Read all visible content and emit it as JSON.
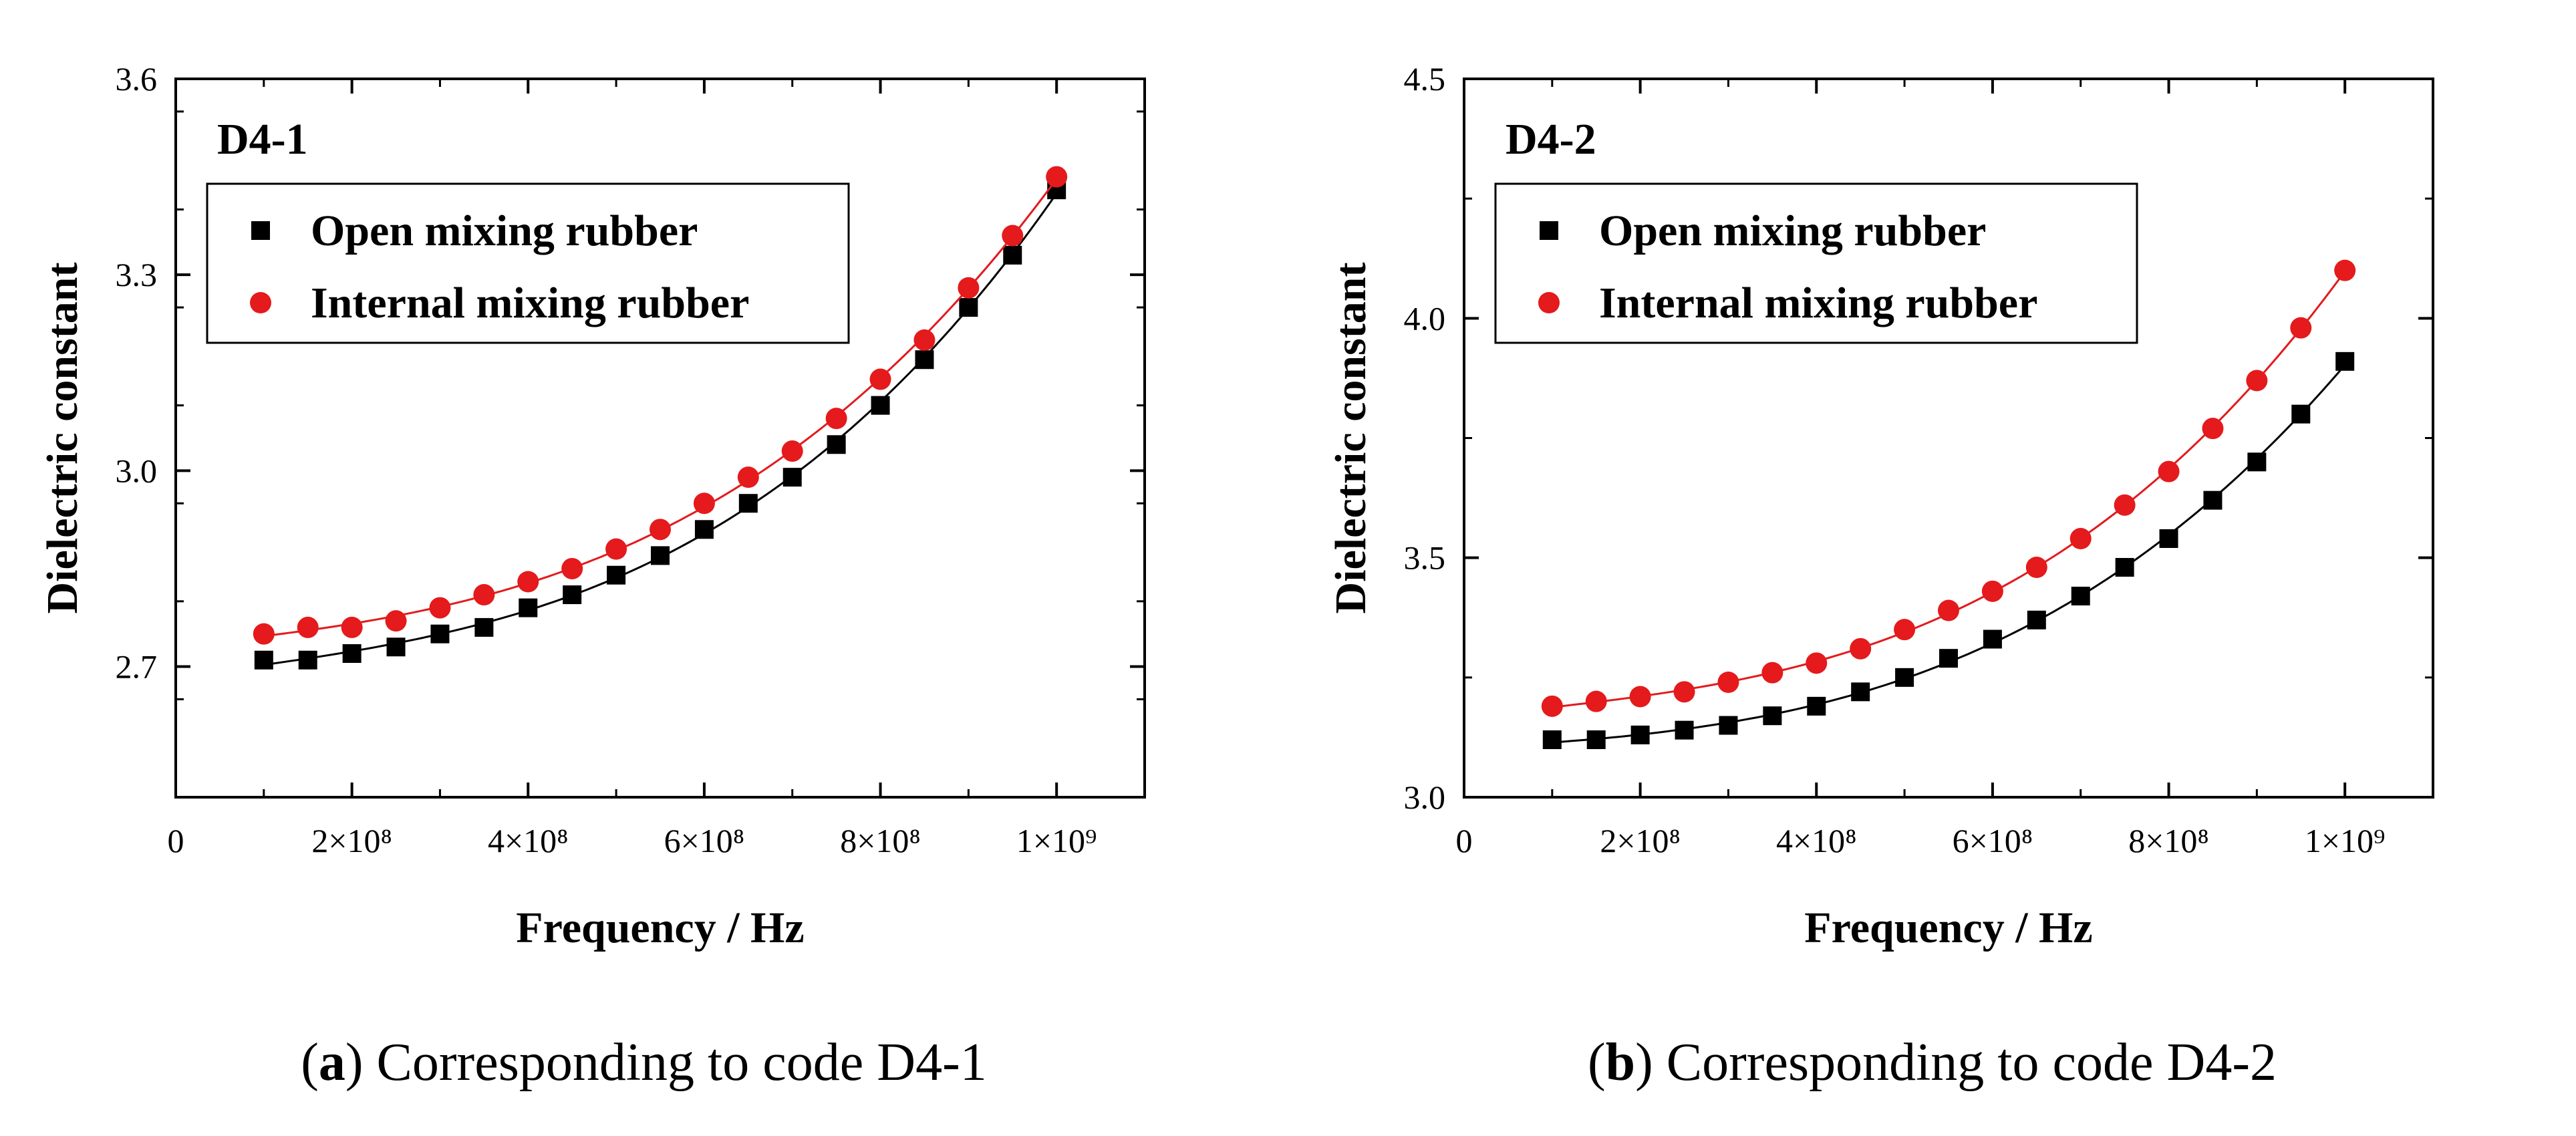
{
  "chart_data": [
    {
      "type": "scatter",
      "panel_label": "D4-1",
      "xlabel": "Frequency / Hz",
      "ylabel": "Dielectric constant",
      "xlim": [
        0,
        1100000000
      ],
      "ylim": [
        2.5,
        3.6
      ],
      "x_ticks": [
        {
          "value": 0,
          "label": "0"
        },
        {
          "value": 200000000,
          "label": "2×10⁸"
        },
        {
          "value": 400000000,
          "label": "4×10⁸"
        },
        {
          "value": 600000000,
          "label": "6×10⁸"
        },
        {
          "value": 800000000,
          "label": "8×10⁸"
        },
        {
          "value": 1000000000,
          "label": "1×10⁹"
        }
      ],
      "y_ticks": [
        {
          "value": 2.7,
          "label": "2.7"
        },
        {
          "value": 3.0,
          "label": "3.0"
        },
        {
          "value": 3.3,
          "label": "3.3"
        },
        {
          "value": 3.6,
          "label": "3.6"
        }
      ],
      "x": [
        100000000,
        150000000,
        200000000,
        250000000,
        300000000,
        350000000,
        400000000,
        450000000,
        500000000,
        550000000,
        600000000,
        650000000,
        700000000,
        750000000,
        800000000,
        850000000,
        900000000,
        950000000,
        1000000000
      ],
      "series": [
        {
          "name": "Open mixing rubber",
          "marker": "square",
          "color": "#000000",
          "values": [
            2.71,
            2.71,
            2.72,
            2.73,
            2.75,
            2.76,
            2.79,
            2.81,
            2.84,
            2.87,
            2.91,
            2.95,
            2.99,
            3.04,
            3.1,
            3.17,
            3.25,
            3.33,
            3.43
          ]
        },
        {
          "name": "Internal mixing rubber",
          "marker": "circle",
          "color": "#e41a1c",
          "values": [
            2.75,
            2.76,
            2.76,
            2.77,
            2.79,
            2.81,
            2.83,
            2.85,
            2.88,
            2.91,
            2.95,
            2.99,
            3.03,
            3.08,
            3.14,
            3.2,
            3.28,
            3.36,
            3.45
          ]
        }
      ],
      "legend": "top-left",
      "caption_letter": "a",
      "caption_text": " Corresponding to code D4-1"
    },
    {
      "type": "scatter",
      "panel_label": "D4-2",
      "xlabel": "Frequency / Hz",
      "ylabel": "Dielectric constant",
      "xlim": [
        0,
        1100000000
      ],
      "ylim": [
        3.0,
        4.5
      ],
      "x_ticks": [
        {
          "value": 0,
          "label": "0"
        },
        {
          "value": 200000000,
          "label": "2×10⁸"
        },
        {
          "value": 400000000,
          "label": "4×10⁸"
        },
        {
          "value": 600000000,
          "label": "6×10⁸"
        },
        {
          "value": 800000000,
          "label": "8×10⁸"
        },
        {
          "value": 1000000000,
          "label": "1×10⁹"
        }
      ],
      "y_ticks": [
        {
          "value": 3.0,
          "label": "3.0"
        },
        {
          "value": 3.5,
          "label": "3.5"
        },
        {
          "value": 4.0,
          "label": "4.0"
        },
        {
          "value": 4.5,
          "label": "4.5"
        }
      ],
      "x": [
        100000000,
        150000000,
        200000000,
        250000000,
        300000000,
        350000000,
        400000000,
        450000000,
        500000000,
        550000000,
        600000000,
        650000000,
        700000000,
        750000000,
        800000000,
        850000000,
        900000000,
        950000000,
        1000000000
      ],
      "series": [
        {
          "name": "Open mixing rubber",
          "marker": "square",
          "color": "#000000",
          "values": [
            3.12,
            3.12,
            3.13,
            3.14,
            3.15,
            3.17,
            3.19,
            3.22,
            3.25,
            3.29,
            3.33,
            3.37,
            3.42,
            3.48,
            3.54,
            3.62,
            3.7,
            3.8,
            3.91
          ]
        },
        {
          "name": "Internal mixing rubber",
          "marker": "circle",
          "color": "#e41a1c",
          "values": [
            3.19,
            3.2,
            3.21,
            3.22,
            3.24,
            3.26,
            3.28,
            3.31,
            3.35,
            3.39,
            3.43,
            3.48,
            3.54,
            3.61,
            3.68,
            3.77,
            3.87,
            3.98,
            4.1
          ]
        }
      ],
      "legend": "top-left",
      "caption_letter": "b",
      "caption_text": " Corresponding to code D4-2"
    }
  ]
}
